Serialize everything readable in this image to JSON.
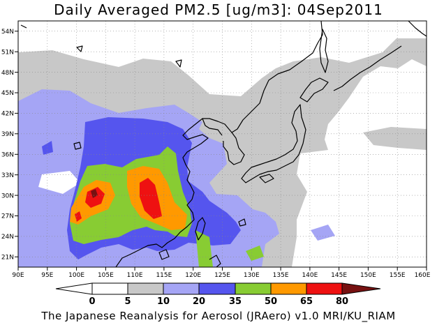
{
  "title": "Daily Averaged PM2.5 [ug/m3]: 04Sep2011",
  "footer": "The Japanese Reanalysis for Aerosol (JRAero) v1.0 MRI/KU_RIAM",
  "map": {
    "lon_min": 90,
    "lon_max": 160,
    "lat_min": 19.5,
    "lat_max": 55.5,
    "lon_ticks": [
      90,
      95,
      100,
      105,
      110,
      115,
      120,
      125,
      130,
      135,
      140,
      145,
      150,
      155,
      160
    ],
    "lat_ticks": [
      21,
      24,
      27,
      30,
      33,
      36,
      39,
      42,
      45,
      48,
      51,
      54
    ],
    "gridlines": "dotted"
  },
  "colorbar": {
    "levels": [
      "0",
      "5",
      "10",
      "20",
      "35",
      "50",
      "65",
      "80"
    ],
    "colors": [
      "#ffffff",
      "#c8c8c8",
      "#a5a5f5",
      "#5555ee",
      "#88cc33",
      "#ff9900",
      "#ee1111",
      "#771111"
    ],
    "under_color": "#ffffff",
    "over_color": "#771111"
  }
}
